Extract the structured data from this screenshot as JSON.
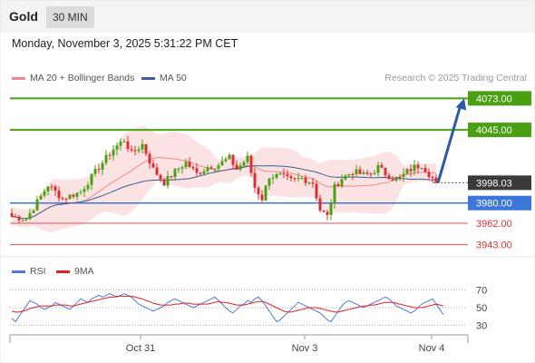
{
  "header": {
    "title": "Gold",
    "timeframe": "30 MIN",
    "datetime": "Monday, November 3, 2025 5:31:22 PM CET"
  },
  "legend": {
    "main": [
      {
        "label": "MA 20 + Bollinger Bands",
        "color": "#f08888"
      },
      {
        "label": "MA 50",
        "color": "#3a5f9a"
      }
    ],
    "rsi": [
      {
        "label": "RSI",
        "color": "#5577dd"
      },
      {
        "label": "9MA",
        "color": "#dd2222"
      }
    ],
    "source": "Research © 2025 Trading Central"
  },
  "chart_data": [
    {
      "type": "candlestick",
      "ylim": [
        3933,
        4083
      ],
      "current_price": 3998.03,
      "levels": [
        {
          "value": 4073.0,
          "label": "4073.00",
          "kind": "resistance",
          "color": "#4aa012"
        },
        {
          "value": 4045.0,
          "label": "4045.00",
          "kind": "resistance",
          "color": "#4aa012"
        },
        {
          "value": 3998.03,
          "label": "3998.03",
          "kind": "last",
          "color": "#333333"
        },
        {
          "value": 3980.0,
          "label": "3980.00",
          "kind": "pivot",
          "color": "#3b76d8"
        },
        {
          "value": 3962.0,
          "label": "3962.00",
          "kind": "support",
          "color": "#e05050"
        },
        {
          "value": 3943.0,
          "label": "3943.00",
          "kind": "support",
          "color": "#e05050"
        }
      ],
      "x_labels": [
        "Oct 31",
        "Nov 3",
        "Nov 4"
      ],
      "forecast": {
        "from": 3998,
        "to": 4073
      },
      "anchors": [
        [
          0,
          3968
        ],
        [
          4,
          3966
        ],
        [
          10,
          3996
        ],
        [
          14,
          3984
        ],
        [
          19,
          3990
        ],
        [
          24,
          4012
        ],
        [
          28,
          4028
        ],
        [
          31,
          4036
        ],
        [
          33,
          4024
        ],
        [
          36,
          4032
        ],
        [
          39,
          4010
        ],
        [
          42,
          3998
        ],
        [
          45,
          4008
        ],
        [
          48,
          4016
        ],
        [
          51,
          4006
        ],
        [
          54,
          4012
        ],
        [
          57,
          4014
        ],
        [
          60,
          4020
        ],
        [
          62,
          4010
        ],
        [
          65,
          4020
        ],
        [
          67,
          3994
        ],
        [
          69,
          3984
        ],
        [
          71,
          4004
        ],
        [
          74,
          4004
        ],
        [
          77,
          4000
        ],
        [
          80,
          4002
        ],
        [
          83,
          3998
        ],
        [
          85,
          3974
        ],
        [
          87,
          3968
        ],
        [
          89,
          3994
        ],
        [
          91,
          4002
        ],
        [
          94,
          4008
        ],
        [
          97,
          4005
        ],
        [
          99,
          4006
        ],
        [
          101,
          4012
        ],
        [
          103,
          4006
        ],
        [
          105,
          4002
        ],
        [
          107,
          4002
        ],
        [
          109,
          4008
        ],
        [
          111,
          4012
        ],
        [
          113,
          4014
        ],
        [
          115,
          4006
        ],
        [
          117,
          3999
        ]
      ]
    },
    {
      "type": "line",
      "title": "RSI",
      "ylim": [
        20,
        80
      ],
      "y_ticks": [
        70,
        50,
        30
      ],
      "series": [
        {
          "name": "RSI",
          "values": [
            38,
            34,
            40,
            46,
            52,
            58,
            56,
            54,
            50,
            48,
            50,
            52,
            56,
            54,
            52,
            50,
            48,
            52,
            56,
            60,
            58,
            56,
            60,
            62,
            64,
            62,
            64,
            66,
            64,
            62,
            64,
            66,
            64,
            62,
            58,
            54,
            52,
            50,
            48,
            46,
            48,
            50,
            52,
            56,
            58,
            60,
            58,
            56,
            54,
            52,
            50,
            52,
            54,
            56,
            58,
            60,
            62,
            58,
            54,
            50,
            46,
            44,
            48,
            52,
            54,
            58,
            56,
            60,
            62,
            58,
            52,
            46,
            40,
            34,
            36,
            40,
            44,
            48,
            52,
            56,
            54,
            52,
            50,
            48,
            46,
            44,
            40,
            36,
            34,
            40,
            46,
            52,
            56,
            58,
            56,
            54,
            52,
            50,
            52,
            54,
            56,
            58,
            60,
            62,
            60,
            56,
            52,
            50,
            48,
            46,
            44,
            46,
            50,
            54,
            56,
            58,
            60,
            54,
            48,
            42
          ]
        },
        {
          "name": "9MA",
          "values": [
            46,
            45,
            45,
            46,
            47,
            49,
            50,
            51,
            52,
            52,
            52,
            52,
            53,
            53,
            53,
            53,
            52,
            52,
            53,
            54,
            55,
            56,
            57,
            58,
            59,
            60,
            61,
            62,
            62,
            63,
            63,
            63,
            63,
            63,
            62,
            61,
            60,
            58,
            57,
            55,
            54,
            53,
            53,
            53,
            53,
            54,
            54,
            55,
            55,
            55,
            54,
            54,
            54,
            54,
            54,
            55,
            56,
            57,
            56,
            56,
            55,
            54,
            53,
            53,
            53,
            54,
            55,
            56,
            57,
            57,
            56,
            54,
            52,
            50,
            48,
            46,
            45,
            45,
            46,
            47,
            48,
            49,
            50,
            50,
            50,
            49,
            48,
            47,
            46,
            45,
            45,
            46,
            47,
            48,
            49,
            50,
            51,
            52,
            52,
            53,
            53,
            54,
            55,
            56,
            56,
            56,
            55,
            54,
            53,
            52,
            51,
            50,
            50,
            50,
            51,
            52,
            53,
            54,
            53,
            52
          ]
        }
      ]
    }
  ]
}
